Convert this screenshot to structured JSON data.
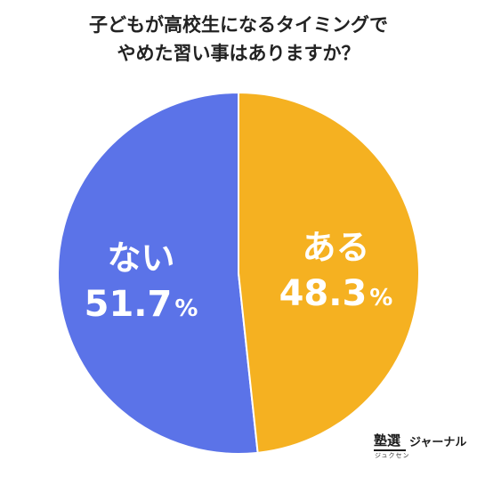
{
  "title_lines": [
    "子どもが高校生になるタイミングで",
    "やめた習い事はありますか？"
  ],
  "chart_data": {
    "type": "pie",
    "title": "子どもが高校生になるタイミングでやめた習い事はありますか？",
    "slices": [
      {
        "label": "ない",
        "value": 51.7,
        "value_text": "51.7",
        "unit": "%",
        "color": "#5b73e8"
      },
      {
        "label": "ある",
        "value": 48.3,
        "value_text": "48.3",
        "unit": "%",
        "color": "#f5b121"
      }
    ],
    "start": "top",
    "label_color": "#ffffff",
    "stroke_color": "#ffffff"
  },
  "brand": {
    "logo": "塾選",
    "ruby": "ジュクセン",
    "name": "ジャーナル"
  }
}
